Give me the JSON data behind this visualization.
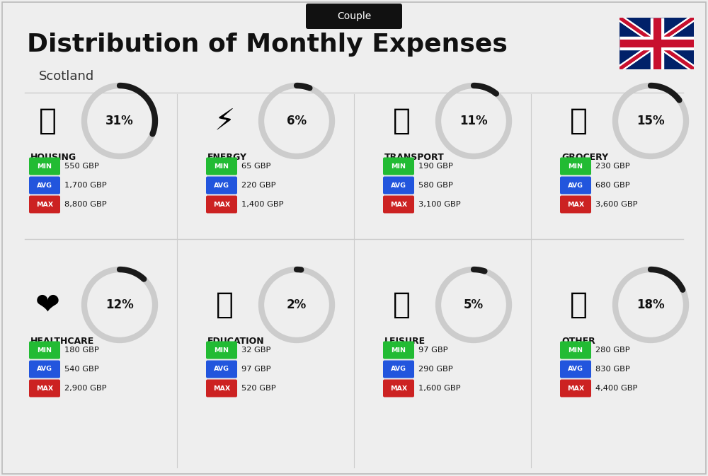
{
  "title": "Distribution of Monthly Expenses",
  "subtitle": "Scotland",
  "badge": "Couple",
  "bg_color": "#eeeeee",
  "categories": [
    {
      "name": "HOUSING",
      "pct": 31,
      "min": "550 GBP",
      "avg": "1,700 GBP",
      "max": "8,800 GBP",
      "col": 0,
      "row": 0,
      "emoji_key": "housing"
    },
    {
      "name": "ENERGY",
      "pct": 6,
      "min": "65 GBP",
      "avg": "220 GBP",
      "max": "1,400 GBP",
      "col": 1,
      "row": 0,
      "emoji_key": "energy"
    },
    {
      "name": "TRANSPORT",
      "pct": 11,
      "min": "190 GBP",
      "avg": "580 GBP",
      "max": "3,100 GBP",
      "col": 2,
      "row": 0,
      "emoji_key": "transport"
    },
    {
      "name": "GROCERY",
      "pct": 15,
      "min": "230 GBP",
      "avg": "680 GBP",
      "max": "3,600 GBP",
      "col": 3,
      "row": 0,
      "emoji_key": "grocery"
    },
    {
      "name": "HEALTHCARE",
      "pct": 12,
      "min": "180 GBP",
      "avg": "540 GBP",
      "max": "2,900 GBP",
      "col": 0,
      "row": 1,
      "emoji_key": "healthcare"
    },
    {
      "name": "EDUCATION",
      "pct": 2,
      "min": "32 GBP",
      "avg": "97 GBP",
      "max": "520 GBP",
      "col": 1,
      "row": 1,
      "emoji_key": "education"
    },
    {
      "name": "LEISURE",
      "pct": 5,
      "min": "97 GBP",
      "avg": "290 GBP",
      "max": "1,600 GBP",
      "col": 2,
      "row": 1,
      "emoji_key": "leisure"
    },
    {
      "name": "OTHER",
      "pct": 18,
      "min": "280 GBP",
      "avg": "830 GBP",
      "max": "4,400 GBP",
      "col": 3,
      "row": 1,
      "emoji_key": "other"
    }
  ],
  "min_color": "#22bb33",
  "avg_color": "#2255dd",
  "max_color": "#cc2222",
  "label_color": "#ffffff",
  "title_color": "#111111",
  "name_color": "#111111",
  "badge_bg": "#111111",
  "badge_fg": "#ffffff",
  "donut_dark": "#1a1a1a",
  "donut_light": "#cccccc"
}
